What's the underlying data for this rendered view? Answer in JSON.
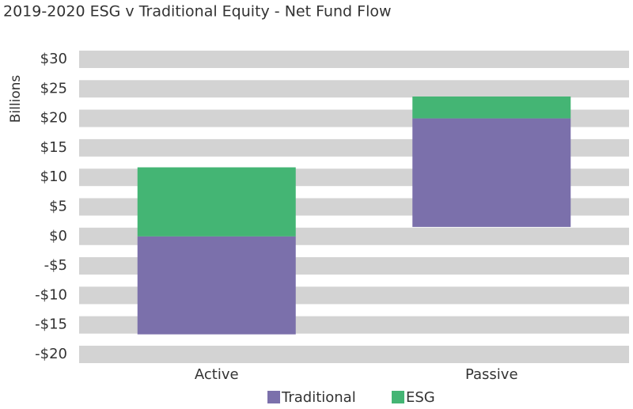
{
  "chart_data": {
    "type": "floating-bar",
    "title": "2019-2020 ESG v Traditional Equity - Net Fund Flow",
    "y_label": "Billions",
    "categories": [
      "Active",
      "Passive"
    ],
    "series": [
      {
        "name": "Traditional",
        "color": "#7b70ab",
        "values": [
          [
            0,
            -16.6
          ],
          [
            1.6,
            20
          ]
        ]
      },
      {
        "name": "ESG",
        "color": "#44b574",
        "values": [
          [
            0,
            11.7
          ],
          [
            20,
            23.7
          ]
        ]
      }
    ],
    "ylim": [
      -20,
      30
    ],
    "yticks": [
      {
        "value": 30,
        "label": "$30"
      },
      {
        "value": 25,
        "label": "$25"
      },
      {
        "value": 20,
        "label": "$20"
      },
      {
        "value": 15,
        "label": "$15"
      },
      {
        "value": 10,
        "label": "$10"
      },
      {
        "value": 5,
        "label": "$5"
      },
      {
        "value": 0,
        "label": "$0"
      },
      {
        "value": -5,
        "label": "-$5"
      },
      {
        "value": -10,
        "label": "-$10"
      },
      {
        "value": -15,
        "label": "-$15"
      },
      {
        "value": -20,
        "label": "-$20"
      }
    ],
    "grid": true,
    "legend": "bottom"
  }
}
